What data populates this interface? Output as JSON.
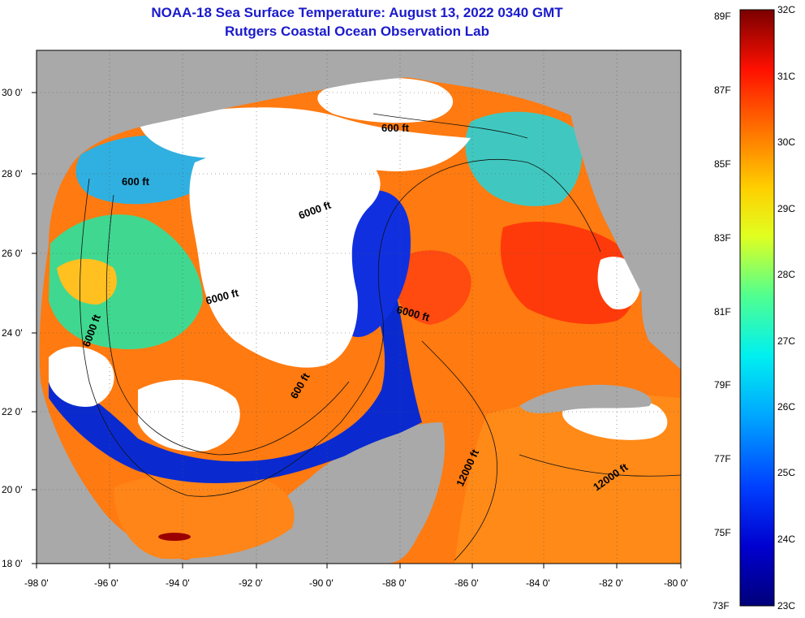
{
  "title": {
    "line1": "NOAA-18 Sea Surface Temperature:  August 13, 2022 0340 GMT",
    "line2": "Rutgers Coastal Ocean Observation Lab"
  },
  "colors": {
    "title": "#1a1acc",
    "land": "#a9a9a9",
    "cloud": "#ffffff",
    "frame": "#000000"
  },
  "map": {
    "lon_range": [
      -98,
      -80
    ],
    "lat_range": [
      18,
      31
    ],
    "x_ticks": [
      "-98 0'",
      "-96 0'",
      "-94 0'",
      "-92 0'",
      "-90 0'",
      "-88 0'",
      "-86 0'",
      "-84 0'",
      "-82 0'",
      "-80 0'"
    ],
    "y_ticks": [
      "18 0'",
      "20 0'",
      "22 0'",
      "24 0'",
      "26 0'",
      "28 0'",
      "30 0'"
    ],
    "contour_labels": [
      "600 ft",
      "600 ft",
      "6000 ft",
      "6000 ft",
      "6000 ft",
      "6000 ft",
      "600 ft",
      "12000 ft",
      "12000 ft"
    ]
  },
  "colorbar": {
    "fahrenheit": [
      "89F",
      "87F",
      "85F",
      "83F",
      "81F",
      "79F",
      "77F",
      "75F",
      "73F"
    ],
    "celsius": [
      "32C",
      "31C",
      "30C",
      "29C",
      "28C",
      "27C",
      "26C",
      "25C",
      "24C",
      "23C"
    ],
    "range_c": [
      23,
      32
    ]
  }
}
